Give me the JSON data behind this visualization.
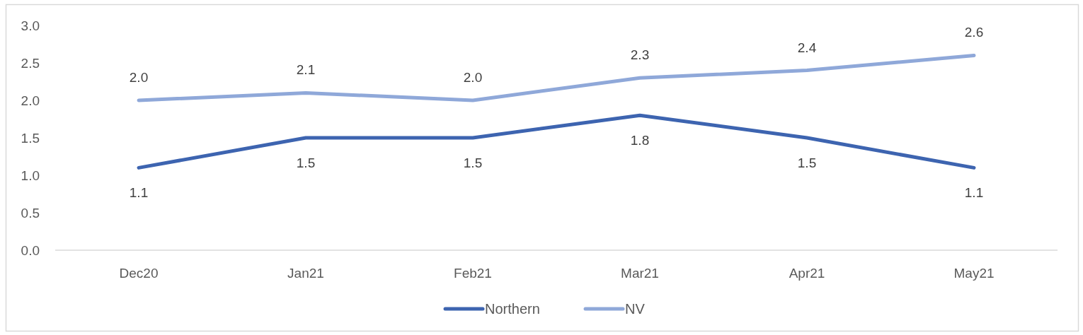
{
  "chart_data": {
    "type": "line",
    "categories": [
      "Dec20",
      "Jan21",
      "Feb21",
      "Mar21",
      "Apr21",
      "May21"
    ],
    "series": [
      {
        "name": "Northern",
        "color": "#3d64b0",
        "values": [
          1.1,
          1.5,
          1.5,
          1.8,
          1.5,
          1.1
        ],
        "value_labels": [
          "1.1",
          "1.5",
          "1.5",
          "1.8",
          "1.5",
          "1.1"
        ]
      },
      {
        "name": "NV",
        "color": "#8fa8d9",
        "values": [
          2.0,
          2.1,
          2.0,
          2.3,
          2.4,
          2.6
        ],
        "value_labels": [
          "2.0",
          "2.1",
          "2.0",
          "2.3",
          "2.4",
          "2.6"
        ]
      }
    ],
    "ylim": [
      0,
      3
    ],
    "yticks": [
      {
        "value": 0,
        "label": "0.0"
      },
      {
        "value": 0.5,
        "label": "0.5"
      },
      {
        "value": 1,
        "label": "1.0"
      },
      {
        "value": 1.5,
        "label": "1.5"
      },
      {
        "value": 2,
        "label": "2.0"
      },
      {
        "value": 2.5,
        "label": "2.5"
      },
      {
        "value": 3,
        "label": "3.0"
      }
    ],
    "grid": false,
    "legend": "bottom",
    "marker": "none",
    "line_style": "solid"
  }
}
